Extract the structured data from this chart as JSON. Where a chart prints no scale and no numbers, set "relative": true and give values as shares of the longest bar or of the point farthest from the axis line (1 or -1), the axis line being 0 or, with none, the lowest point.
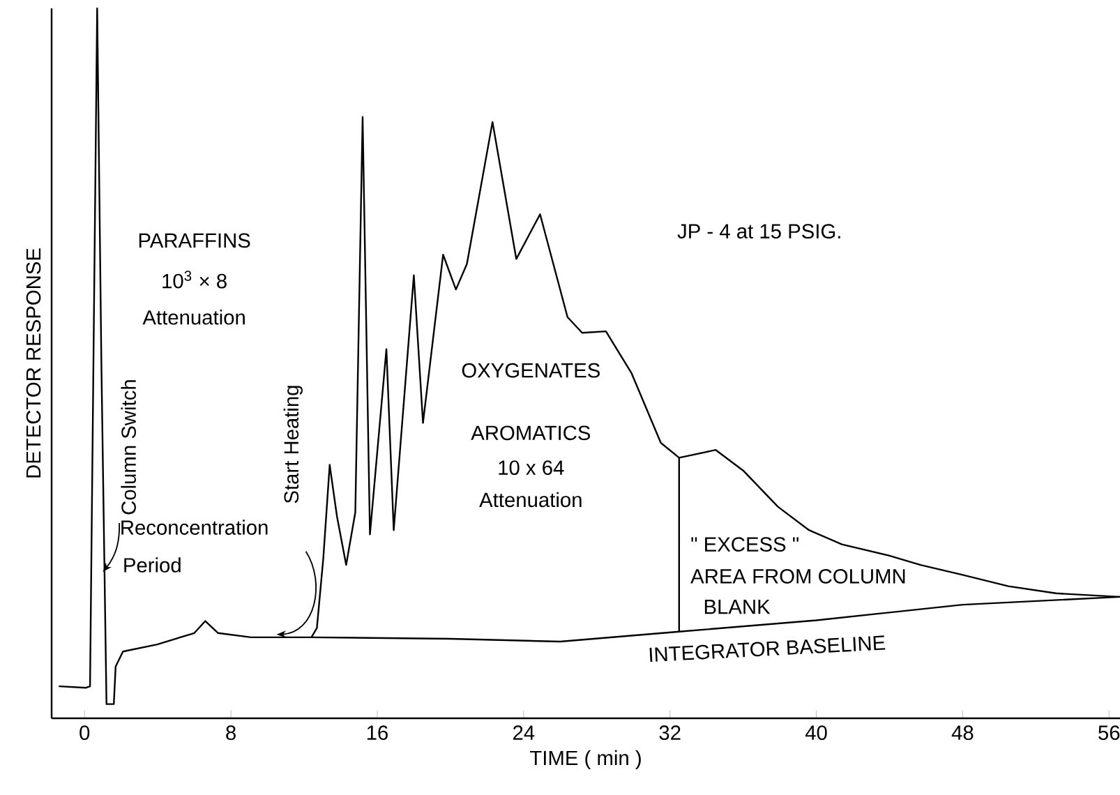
{
  "chart_data": {
    "type": "line",
    "relative": true,
    "xlabel": "TIME ( min )",
    "ylabel": "DETECTOR RESPONSE",
    "xlim": [
      -1.8,
      56.6
    ],
    "xticks": [
      0,
      8,
      16,
      24,
      32,
      40,
      48,
      56
    ],
    "grid": false,
    "marker": "none",
    "line_style": "solid",
    "series": [
      {
        "color": "#000000",
        "x": [
          -1.37,
          0.08,
          0.3,
          0.69,
          0.92,
          1.2,
          1.6,
          1.7,
          2.1,
          3.97,
          6.0,
          6.6,
          7.3,
          9.1,
          12.4,
          12.7,
          13.05,
          13.4,
          13.8,
          14.3,
          14.8,
          15.2,
          15.6,
          16.5,
          16.9,
          18.0,
          18.5,
          19.6,
          20.3,
          20.9,
          22.3,
          23.6,
          24.9,
          26.4,
          27.2,
          28.5,
          29.9,
          31.5,
          32.5,
          34.5,
          36.0,
          37.9,
          39.6,
          41.4,
          44.0,
          45.7,
          48.0,
          50.5,
          53.1,
          56.6
        ],
        "values": [
          0.045,
          0.043,
          0.045,
          1,
          0.5,
          0.02,
          0.02,
          0.073,
          0.094,
          0.104,
          0.12,
          0.137,
          0.12,
          0.114,
          0.114,
          0.127,
          0.225,
          0.357,
          0.284,
          0.216,
          0.29,
          0.847,
          0.259,
          0.52,
          0.265,
          0.624,
          0.416,
          0.653,
          0.604,
          0.64,
          0.84,
          0.647,
          0.71,
          0.565,
          0.543,
          0.545,
          0.486,
          0.388,
          0.367,
          0.378,
          0.349,
          0.298,
          0.265,
          0.245,
          0.229,
          0.216,
          0.202,
          0.186,
          0.176,
          0.171
        ]
      },
      {
        "color": "#000000",
        "x": [
          12.4,
          20,
          26,
          32.5,
          40,
          48,
          56.6
        ],
        "values": [
          0.114,
          0.112,
          0.108,
          0.122,
          0.138,
          0.16,
          0.171
        ]
      },
      {
        "color": "#000000",
        "x": [
          32.5,
          32.5
        ],
        "values": [
          0.122,
          0.367
        ]
      }
    ],
    "annotations": [
      "PARAFFINS",
      "10$^{3}$ × 8",
      "Attenuation",
      "Column Switch",
      "Reconcentration",
      "Period",
      "Start Heating",
      "OXYGENATES",
      "AROMATICS",
      "10 x 64",
      "Attenuation",
      "JP - 4 at 15 PSIG.",
      "\" EXCESS \"",
      "AREA FROM COLUMN",
      "BLANK",
      "INTEGRATOR BASELINE"
    ]
  }
}
